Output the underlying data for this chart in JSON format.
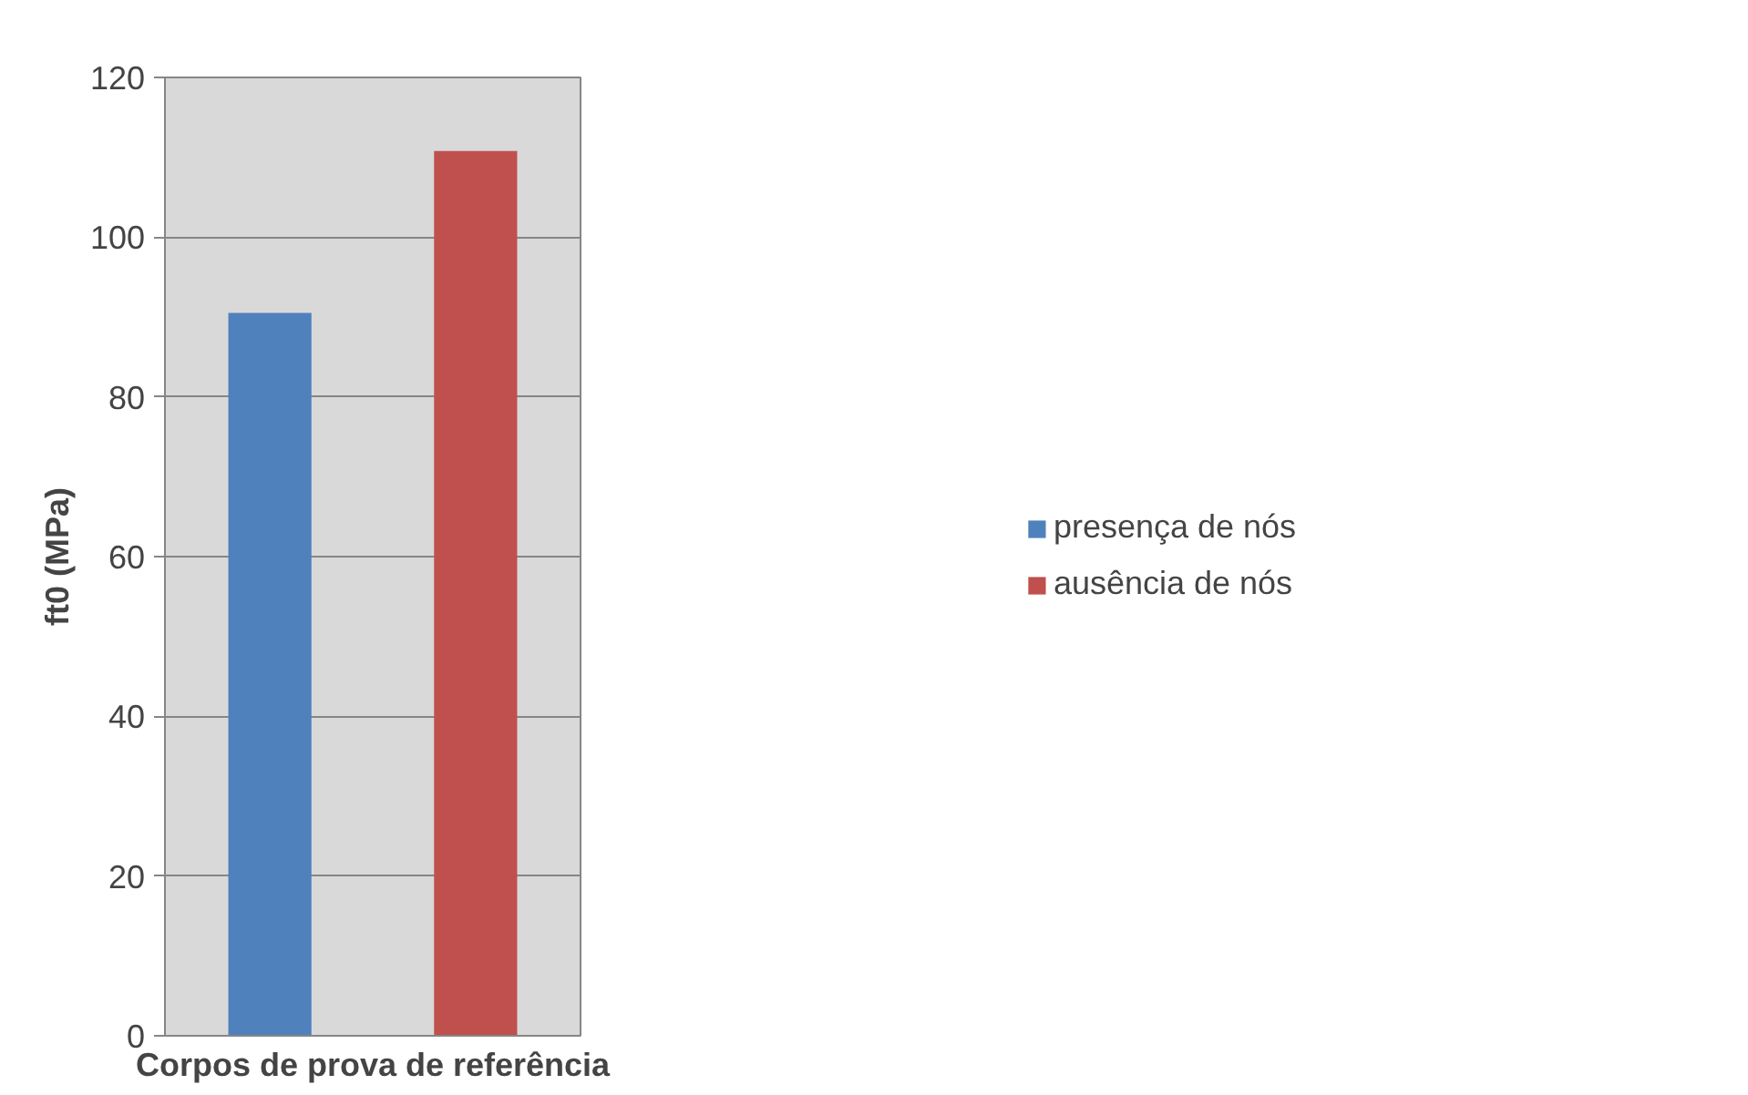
{
  "chart_data": {
    "type": "bar",
    "xlabel": "Corpos de prova de referência",
    "ylabel": "ft0 (MPa)",
    "categories": [
      null
    ],
    "series": [
      {
        "name": "presença de nós",
        "color": "#4f81bd",
        "values": [
          90.5
        ]
      },
      {
        "name": "ausência de nós",
        "color": "#c0504d",
        "values": [
          110.8
        ]
      }
    ],
    "ylim": [
      0,
      120
    ],
    "yticks": [
      0,
      20,
      40,
      60,
      80,
      100,
      120
    ],
    "grid": "y",
    "legend": "right"
  }
}
